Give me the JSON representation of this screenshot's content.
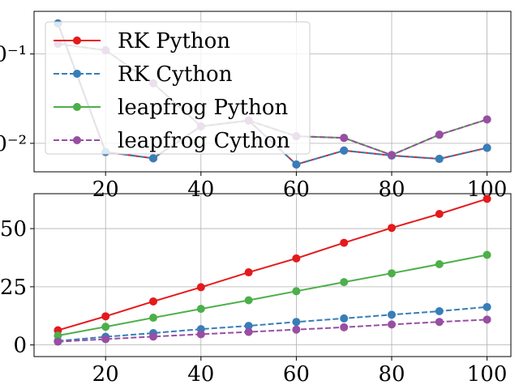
{
  "chart_data": [
    {
      "type": "line",
      "yscale": "log",
      "xlim": [
        5,
        105
      ],
      "ylim": [
        0.0048,
        0.3
      ],
      "grid": true,
      "legend_position": "upper-left",
      "x": [
        10,
        20,
        30,
        40,
        50,
        60,
        70,
        80,
        90,
        100
      ],
      "x_tick_labels": [
        "20",
        "40",
        "60",
        "80",
        "100"
      ],
      "x_tick_values": [
        20,
        40,
        60,
        80,
        100
      ],
      "y_tick_labels": [
        "0⁻¹",
        "0⁻²"
      ],
      "y_tick_values": [
        0.1,
        0.01
      ],
      "series": [
        {
          "name": "RK Python",
          "color": "#e41a1c",
          "dash": "solid",
          "values": [
            0.22,
            0.008,
            0.0068,
            0.0155,
            0.018,
            0.0058,
            0.0083,
            0.0073,
            0.0067,
            0.0089
          ]
        },
        {
          "name": "RK Cython",
          "color": "#377eb8",
          "dash": "dashed",
          "values": [
            0.22,
            0.008,
            0.0068,
            0.0155,
            0.018,
            0.0058,
            0.0083,
            0.0073,
            0.0067,
            0.0089
          ]
        },
        {
          "name": "leapfrog Python",
          "color": "#4daf4a",
          "dash": "solid",
          "values": [
            0.13,
            0.11,
            0.047,
            0.0155,
            0.018,
            0.012,
            0.0115,
            0.0074,
            0.0125,
            0.0185
          ]
        },
        {
          "name": "leapfrog Cython",
          "color": "#984ea3",
          "dash": "dashed",
          "values": [
            0.13,
            0.11,
            0.047,
            0.0155,
            0.018,
            0.012,
            0.0115,
            0.0074,
            0.0125,
            0.0185
          ]
        }
      ]
    },
    {
      "type": "line",
      "yscale": "linear",
      "xlim": [
        5,
        105
      ],
      "ylim": [
        -0.5,
        6.5
      ],
      "grid": true,
      "x": [
        10,
        20,
        30,
        40,
        50,
        60,
        70,
        80,
        90,
        100
      ],
      "x_tick_labels": [
        "20",
        "40",
        "60",
        "80",
        "100"
      ],
      "x_tick_values": [
        20,
        40,
        60,
        80,
        100
      ],
      "y_tick_labels": [
        "0",
        "25",
        "50"
      ],
      "y_tick_values": [
        0,
        2.5,
        5
      ],
      "series": [
        {
          "name": "RK Python",
          "color": "#e41a1c",
          "dash": "solid",
          "values": [
            0.63,
            1.23,
            1.87,
            2.48,
            3.12,
            3.72,
            4.39,
            5.03,
            5.63,
            6.28
          ]
        },
        {
          "name": "RK Cython",
          "color": "#377eb8",
          "dash": "dashed",
          "values": [
            0.17,
            0.35,
            0.51,
            0.68,
            0.82,
            0.99,
            1.14,
            1.3,
            1.45,
            1.63
          ]
        },
        {
          "name": "leapfrog Python",
          "color": "#4daf4a",
          "dash": "solid",
          "values": [
            0.4,
            0.78,
            1.17,
            1.55,
            1.92,
            2.31,
            2.7,
            3.08,
            3.47,
            3.87
          ]
        },
        {
          "name": "leapfrog Cython",
          "color": "#984ea3",
          "dash": "dashed",
          "values": [
            0.14,
            0.25,
            0.36,
            0.46,
            0.56,
            0.66,
            0.76,
            0.88,
            0.99,
            1.09
          ]
        }
      ]
    }
  ]
}
